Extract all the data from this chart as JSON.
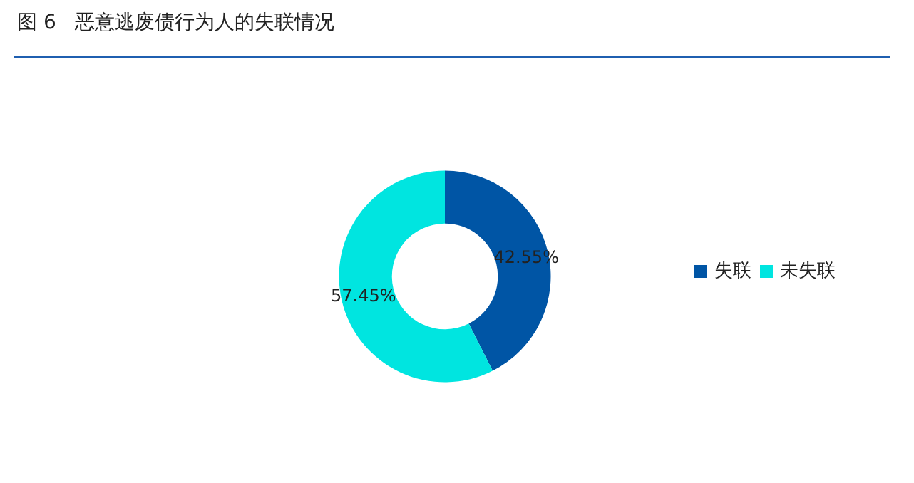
{
  "chart_data": {
    "type": "donut",
    "title": "图 6   恶意逃废债行为人的失联情况",
    "categories": [
      "失联",
      "未失联"
    ],
    "values": [
      42.55,
      57.45
    ],
    "colors": [
      "#0055a5",
      "#00e5e0"
    ],
    "value_labels": [
      "42.55%",
      "57.45%"
    ],
    "legend": "right"
  }
}
